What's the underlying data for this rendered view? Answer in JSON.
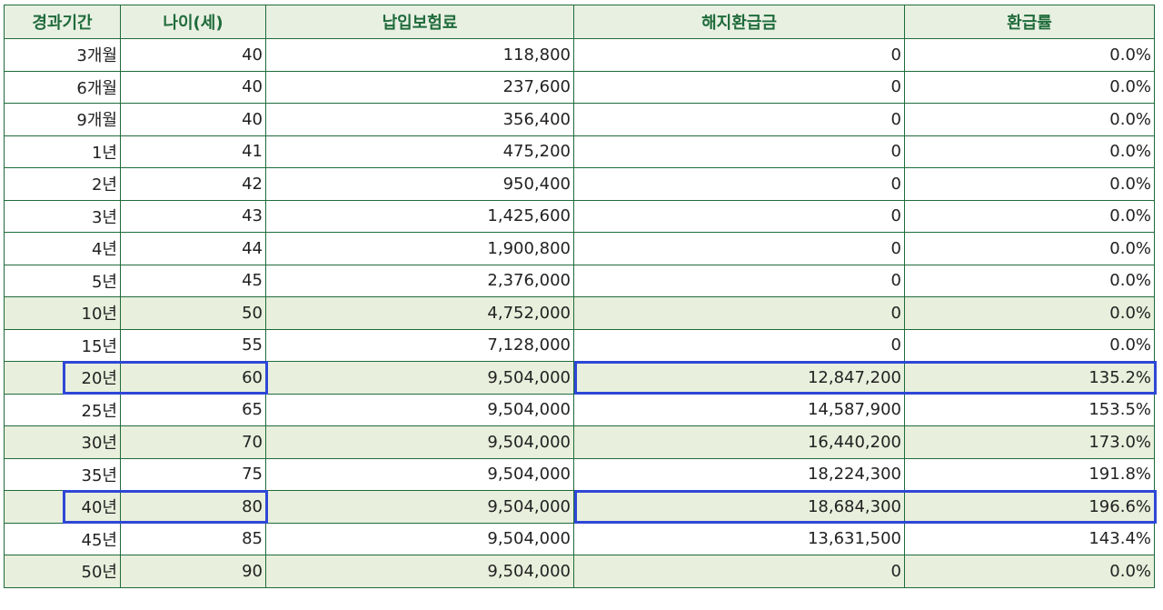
{
  "table": {
    "headers": [
      "경과기간",
      "나이(세)",
      "납입보험료",
      "해지환급금",
      "환급률"
    ],
    "rows": [
      {
        "period": "3개월",
        "age": "40",
        "premium": "118,800",
        "refund": "0",
        "rate": "0.0%",
        "shaded": false
      },
      {
        "period": "6개월",
        "age": "40",
        "premium": "237,600",
        "refund": "0",
        "rate": "0.0%",
        "shaded": false
      },
      {
        "period": "9개월",
        "age": "40",
        "premium": "356,400",
        "refund": "0",
        "rate": "0.0%",
        "shaded": false
      },
      {
        "period": "1년",
        "age": "41",
        "premium": "475,200",
        "refund": "0",
        "rate": "0.0%",
        "shaded": false
      },
      {
        "period": "2년",
        "age": "42",
        "premium": "950,400",
        "refund": "0",
        "rate": "0.0%",
        "shaded": false
      },
      {
        "period": "3년",
        "age": "43",
        "premium": "1,425,600",
        "refund": "0",
        "rate": "0.0%",
        "shaded": false
      },
      {
        "period": "4년",
        "age": "44",
        "premium": "1,900,800",
        "refund": "0",
        "rate": "0.0%",
        "shaded": false
      },
      {
        "period": "5년",
        "age": "45",
        "premium": "2,376,000",
        "refund": "0",
        "rate": "0.0%",
        "shaded": false
      },
      {
        "period": "10년",
        "age": "50",
        "premium": "4,752,000",
        "refund": "0",
        "rate": "0.0%",
        "shaded": true
      },
      {
        "period": "15년",
        "age": "55",
        "premium": "7,128,000",
        "refund": "0",
        "rate": "0.0%",
        "shaded": false
      },
      {
        "period": "20년",
        "age": "60",
        "premium": "9,504,000",
        "refund": "12,847,200",
        "rate": "135.2%",
        "shaded": true
      },
      {
        "period": "25년",
        "age": "65",
        "premium": "9,504,000",
        "refund": "14,587,900",
        "rate": "153.5%",
        "shaded": false
      },
      {
        "period": "30년",
        "age": "70",
        "premium": "9,504,000",
        "refund": "16,440,200",
        "rate": "173.0%",
        "shaded": true
      },
      {
        "period": "35년",
        "age": "75",
        "premium": "9,504,000",
        "refund": "18,224,300",
        "rate": "191.8%",
        "shaded": false
      },
      {
        "period": "40년",
        "age": "80",
        "premium": "9,504,000",
        "refund": "18,684,300",
        "rate": "196.6%",
        "shaded": true
      },
      {
        "period": "45년",
        "age": "85",
        "premium": "9,504,000",
        "refund": "13,631,500",
        "rate": "143.4%",
        "shaded": false
      },
      {
        "period": "50년",
        "age": "90",
        "premium": "9,504,000",
        "refund": "0",
        "rate": "0.0%",
        "shaded": true
      }
    ],
    "highlighted_rows": [
      "20년",
      "40년"
    ]
  },
  "colors": {
    "header_text": "#1f6b3b",
    "border": "#1f6b3b",
    "shaded_row": "#e8efdc",
    "highlight_box": "#2e47d6"
  }
}
